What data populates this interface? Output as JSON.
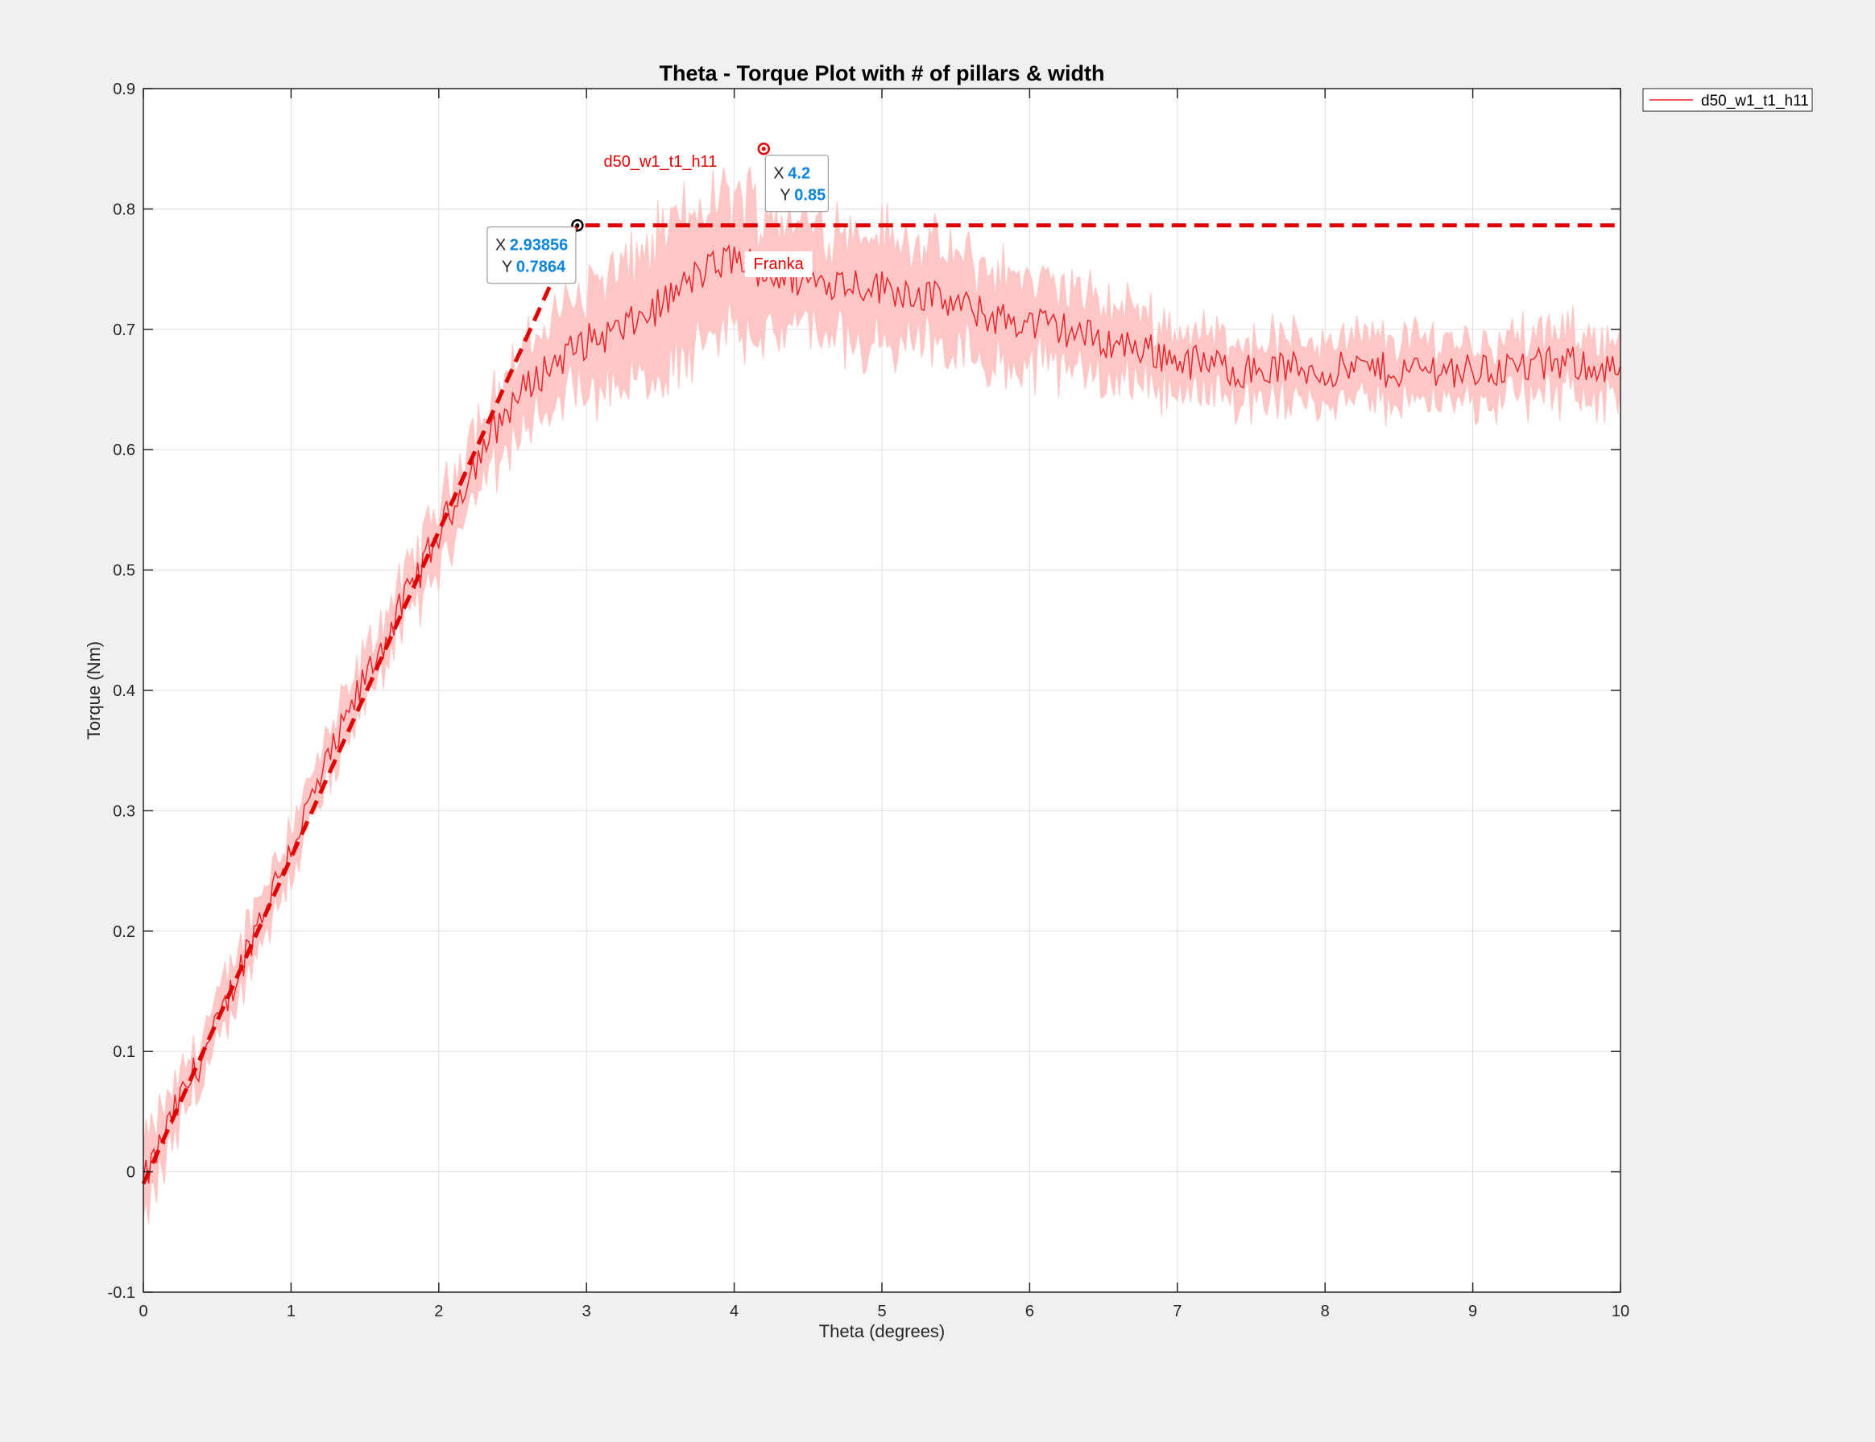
{
  "chart_data": {
    "type": "line",
    "title": "Theta - Torque Plot with # of pillars & width",
    "xlabel": "Theta (degrees)",
    "ylabel": "Torque (Nm)",
    "xlim": [
      0,
      10
    ],
    "ylim": [
      -0.1,
      0.9
    ],
    "xticks": [
      "0",
      "1",
      "2",
      "3",
      "4",
      "5",
      "6",
      "7",
      "8",
      "9",
      "10"
    ],
    "yticks": [
      "-0.1",
      "0",
      "0.1",
      "0.2",
      "0.3",
      "0.4",
      "0.5",
      "0.6",
      "0.7",
      "0.8",
      "0.9"
    ],
    "grid": true,
    "legend_position": "outside-top-right",
    "legend_entries": [
      "d50_w1_t1_h11"
    ],
    "series": [
      {
        "name": "d50_w1_t1_h11",
        "color": "#e8262b",
        "band_color": "#ffc6c6",
        "x": [
          0,
          0.25,
          0.5,
          0.75,
          1.0,
          1.25,
          1.5,
          1.75,
          2.0,
          2.25,
          2.5,
          2.75,
          3.0,
          3.25,
          3.5,
          3.75,
          4.0,
          4.25,
          4.5,
          4.75,
          5.0,
          5.25,
          5.5,
          5.75,
          6.0,
          6.25,
          6.5,
          6.75,
          7.0,
          7.25,
          7.5,
          7.75,
          8.0,
          8.25,
          8.5,
          8.75,
          9.0,
          9.25,
          9.5,
          9.75,
          10.0
        ],
        "y": [
          -0.01,
          0.06,
          0.12,
          0.2,
          0.27,
          0.34,
          0.41,
          0.47,
          0.53,
          0.59,
          0.64,
          0.67,
          0.69,
          0.7,
          0.72,
          0.745,
          0.76,
          0.745,
          0.74,
          0.74,
          0.735,
          0.73,
          0.72,
          0.71,
          0.705,
          0.7,
          0.69,
          0.685,
          0.675,
          0.67,
          0.665,
          0.668,
          0.665,
          0.668,
          0.665,
          0.668,
          0.665,
          0.668,
          0.67,
          0.672,
          0.665
        ],
        "band_halfwidth": [
          0.03,
          0.02,
          0.02,
          0.02,
          0.02,
          0.02,
          0.02,
          0.02,
          0.025,
          0.03,
          0.03,
          0.035,
          0.045,
          0.05,
          0.055,
          0.055,
          0.055,
          0.05,
          0.045,
          0.045,
          0.045,
          0.04,
          0.04,
          0.04,
          0.035,
          0.035,
          0.03,
          0.03,
          0.025,
          0.025,
          0.025,
          0.025,
          0.025,
          0.025,
          0.025,
          0.025,
          0.025,
          0.025,
          0.025,
          0.025,
          0.025
        ]
      }
    ],
    "fit_line": {
      "color": "#e00000",
      "x": [
        0,
        2.93856,
        10
      ],
      "y": [
        -0.01,
        0.7864,
        0.7864
      ]
    },
    "datatips": [
      {
        "x": 2.93856,
        "y": 0.7864,
        "x_label": "2.93856",
        "y_label": "0.7864",
        "marker_color": "#000000"
      },
      {
        "x": 4.2,
        "y": 0.85,
        "x_label": "4.2",
        "y_label": "0.85",
        "marker_color": "#e00000"
      }
    ],
    "annotations": [
      {
        "text": "d50_w1_t1_h11",
        "x": 3.5,
        "y": 0.835
      },
      {
        "text": "Franka",
        "x": 4.3,
        "y": 0.75
      }
    ]
  },
  "datatip_keys": {
    "x": "X",
    "y": "Y"
  }
}
